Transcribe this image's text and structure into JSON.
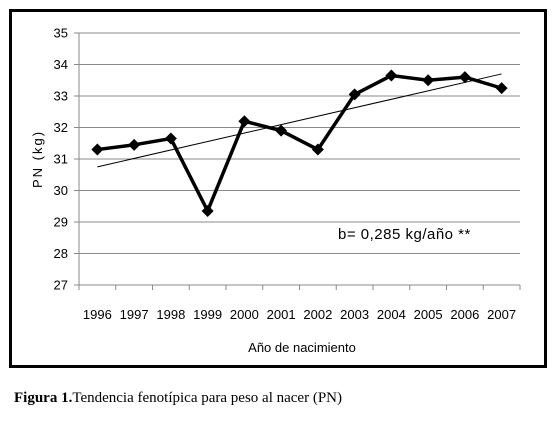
{
  "chart_data": {
    "type": "line",
    "x": [
      "1996",
      "1997",
      "1998",
      "1999",
      "2000",
      "2001",
      "2002",
      "2003",
      "2004",
      "2005",
      "2006",
      "2007"
    ],
    "series": [
      {
        "values": [
          31.3,
          31.45,
          31.65,
          29.35,
          32.2,
          31.9,
          31.3,
          33.05,
          33.65,
          33.5,
          33.6,
          33.25
        ],
        "color": "#000000",
        "marker": "diamond"
      }
    ],
    "trend_line": {
      "start": 30.75,
      "end": 33.7,
      "color": "#000000"
    },
    "xlabel": "Año de nacimiento",
    "ylabel": "PN  (kg)",
    "ylim": [
      27,
      35
    ],
    "yticks": [
      "27",
      "28",
      "29",
      "30",
      "31",
      "32",
      "33",
      "34",
      "35"
    ],
    "grid": true,
    "annotation": "b= 0,285 kg/año **"
  },
  "caption": {
    "label": "Figura 1.",
    "text": "Tendencia fenotípica para peso al nacer (PN)"
  }
}
